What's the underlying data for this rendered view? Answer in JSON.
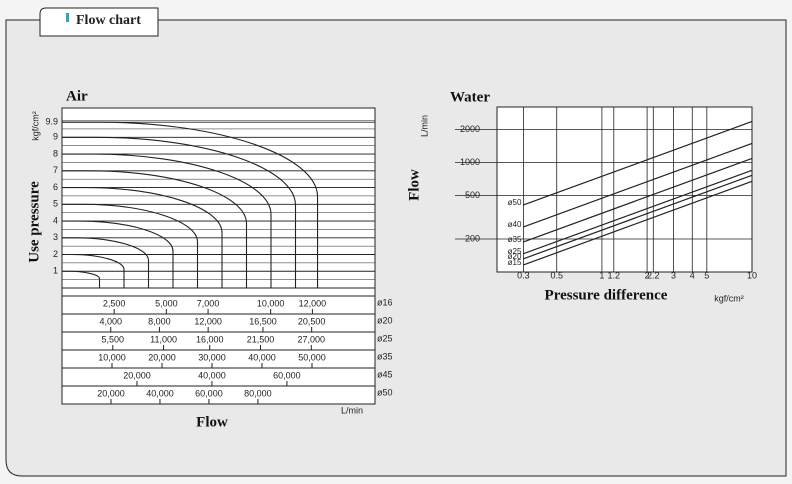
{
  "tab": {
    "title": "Flow chart"
  },
  "chart_data": [
    {
      "type": "nomogram",
      "title": "Air",
      "y_label": "Use pressure",
      "y_unit": "kgf/cm²",
      "x_label": "Flow",
      "x_unit": "L/min",
      "ylim": [
        0,
        10.75
      ],
      "yticks": [
        1,
        2,
        3,
        4,
        5,
        6,
        7,
        8,
        9,
        9.9
      ],
      "color": "#1a1a1a",
      "flow_scales": [
        {
          "name": "ø16",
          "xlim": [
            0,
            15000
          ],
          "ticks": [
            {
              "value": 2500,
              "label": "2,500"
            },
            {
              "value": 5000,
              "label": "5,000"
            },
            {
              "value": 7000,
              "label": "7,000"
            },
            {
              "value": 10000,
              "label": "10,000"
            },
            {
              "value": 12000,
              "label": "12,000"
            }
          ]
        },
        {
          "name": "ø20",
          "xlim": [
            0,
            25700
          ],
          "ticks": [
            {
              "value": 4000,
              "label": "4,000"
            },
            {
              "value": 8000,
              "label": "8,000"
            },
            {
              "value": 12000,
              "label": "12,000"
            },
            {
              "value": 16500,
              "label": "16,500"
            },
            {
              "value": 20500,
              "label": "20,500"
            }
          ]
        },
        {
          "name": "ø25",
          "xlim": [
            0,
            33900
          ],
          "ticks": [
            {
              "value": 5500,
              "label": "5,500"
            },
            {
              "value": 11000,
              "label": "11,000"
            },
            {
              "value": 16000,
              "label": "16,000"
            },
            {
              "value": 21500,
              "label": "21,500"
            },
            {
              "value": 27000,
              "label": "27,000"
            }
          ]
        },
        {
          "name": "ø35",
          "xlim": [
            0,
            62600
          ],
          "ticks": [
            {
              "value": 10000,
              "label": "10,000"
            },
            {
              "value": 20000,
              "label": "20,000"
            },
            {
              "value": 30000,
              "label": "30,000"
            },
            {
              "value": 40000,
              "label": "40,000"
            },
            {
              "value": 50000,
              "label": "50,000"
            }
          ]
        },
        {
          "name": "ø45",
          "xlim": [
            0,
            83500
          ],
          "ticks": [
            {
              "value": 20000,
              "label": "20,000"
            },
            {
              "value": 40000,
              "label": "40,000"
            },
            {
              "value": 60000,
              "label": "60,000"
            }
          ]
        },
        {
          "name": "ø50",
          "xlim": [
            0,
            127800
          ],
          "ticks": [
            {
              "value": 20000,
              "label": "20,000"
            },
            {
              "value": 40000,
              "label": "40,000"
            },
            {
              "value": 60000,
              "label": "60,000"
            },
            {
              "value": 80000,
              "label": "80,000"
            }
          ]
        }
      ]
    },
    {
      "type": "line",
      "title": "Water",
      "y_label": "Flow",
      "y_unit": "L/min",
      "x_label": "Pressure difference",
      "x_unit": "kgf/cm²",
      "log_x": true,
      "log_y": true,
      "grid": true,
      "xlim": [
        0.2,
        10
      ],
      "ylim": [
        100,
        3200
      ],
      "xticks": [
        0.3,
        0.5,
        1,
        1.2,
        2,
        2.2,
        3,
        4,
        5,
        10
      ],
      "yticks": [
        200,
        500,
        1000,
        2000
      ],
      "x": [
        0.3,
        10
      ],
      "series": [
        {
          "name": "ø50",
          "color": "#1a1a1a",
          "values": [
            409,
            2360
          ]
        },
        {
          "name": "ø40",
          "color": "#1a1a1a",
          "values": [
            258,
            1488
          ]
        },
        {
          "name": "ø35",
          "color": "#1a1a1a",
          "values": [
            188,
            1087
          ]
        },
        {
          "name": "ø25",
          "color": "#1a1a1a",
          "values": [
            147,
            846
          ]
        },
        {
          "name": "ø20",
          "color": "#1a1a1a",
          "values": [
            132,
            762
          ]
        },
        {
          "name": "ø15",
          "color": "#1a1a1a",
          "values": [
            116,
            672
          ]
        }
      ]
    }
  ]
}
